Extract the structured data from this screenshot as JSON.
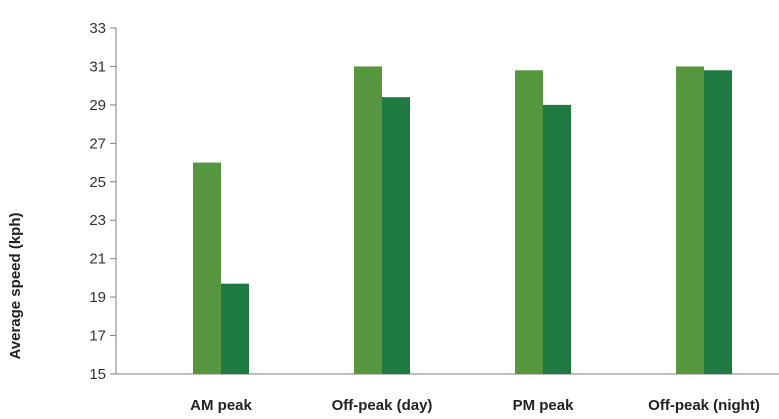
{
  "chart_data": {
    "type": "bar",
    "title": "",
    "xlabel": "",
    "ylabel": "Average speed (kph)",
    "categories": [
      "AM peak",
      "Off-peak (day)",
      "PM peak",
      "Off-peak (night)"
    ],
    "series": [
      {
        "values": [
          26.0,
          31.0,
          30.8,
          31.0
        ],
        "color": "#56963f"
      },
      {
        "values": [
          19.7,
          29.4,
          29.0,
          30.8
        ],
        "color": "#1e7a41"
      }
    ],
    "ylim": [
      15,
      33
    ],
    "yticks": [
      15,
      17,
      19,
      21,
      23,
      25,
      27,
      29,
      31,
      33
    ],
    "grid": false,
    "legend": "none"
  }
}
